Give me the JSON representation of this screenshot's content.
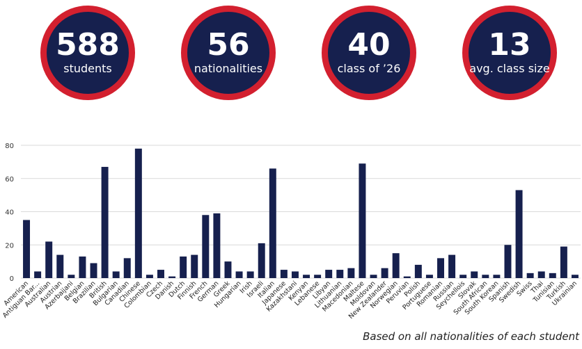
{
  "stats": [
    {
      "value": "588",
      "label": "students"
    },
    {
      "value": "56",
      "label": "nationalities"
    },
    {
      "value": "40",
      "label": "class of ’26"
    },
    {
      "value": "13",
      "label": "avg. class size"
    }
  ],
  "colors": {
    "circle_fill": "#16204e",
    "circle_border": "#d3202f",
    "bar": "#16204e",
    "grid": "#d9d9d9"
  },
  "chart_data": {
    "type": "bar",
    "categories": [
      "American",
      "Antiguan Bar...",
      "Australian",
      "Austrian",
      "Azerbaijani",
      "Belgian",
      "Brazilian",
      "British",
      "Bulgarian",
      "Canadian",
      "Chinese",
      "Colombian",
      "Czech",
      "Danish",
      "Dutch",
      "Finnish",
      "French",
      "German",
      "Greek",
      "Hungarian",
      "Irish",
      "Israeli",
      "Italian",
      "Japanese",
      "Kazakhstani",
      "Kenyan",
      "Lebanese",
      "Libyan",
      "Lithuanian",
      "Macedonian",
      "Maltese",
      "Moldovan",
      "New Zealander",
      "Norwegian",
      "Peruvian",
      "Polish",
      "Portuguese",
      "Romanian",
      "Russian",
      "Seychellois",
      "Slovak",
      "South African",
      "South Korean",
      "Spanish",
      "Swedish",
      "Swiss",
      "Thai",
      "Tunisian",
      "Turkish",
      "Ukrainian"
    ],
    "values": [
      35,
      4,
      22,
      14,
      2,
      13,
      9,
      67,
      4,
      12,
      78,
      2,
      5,
      1,
      13,
      14,
      38,
      39,
      10,
      4,
      4,
      21,
      66,
      5,
      4,
      2,
      2,
      5,
      5,
      6,
      69,
      2,
      6,
      15,
      1,
      8,
      2,
      12,
      14,
      2,
      4,
      2,
      2,
      20,
      53,
      3,
      4,
      3,
      19,
      2
    ],
    "ylim": [
      0,
      80
    ],
    "yticks": [
      0,
      20,
      40,
      60,
      80
    ],
    "grid": true
  },
  "footnote": "Based on all nationalities of each student"
}
